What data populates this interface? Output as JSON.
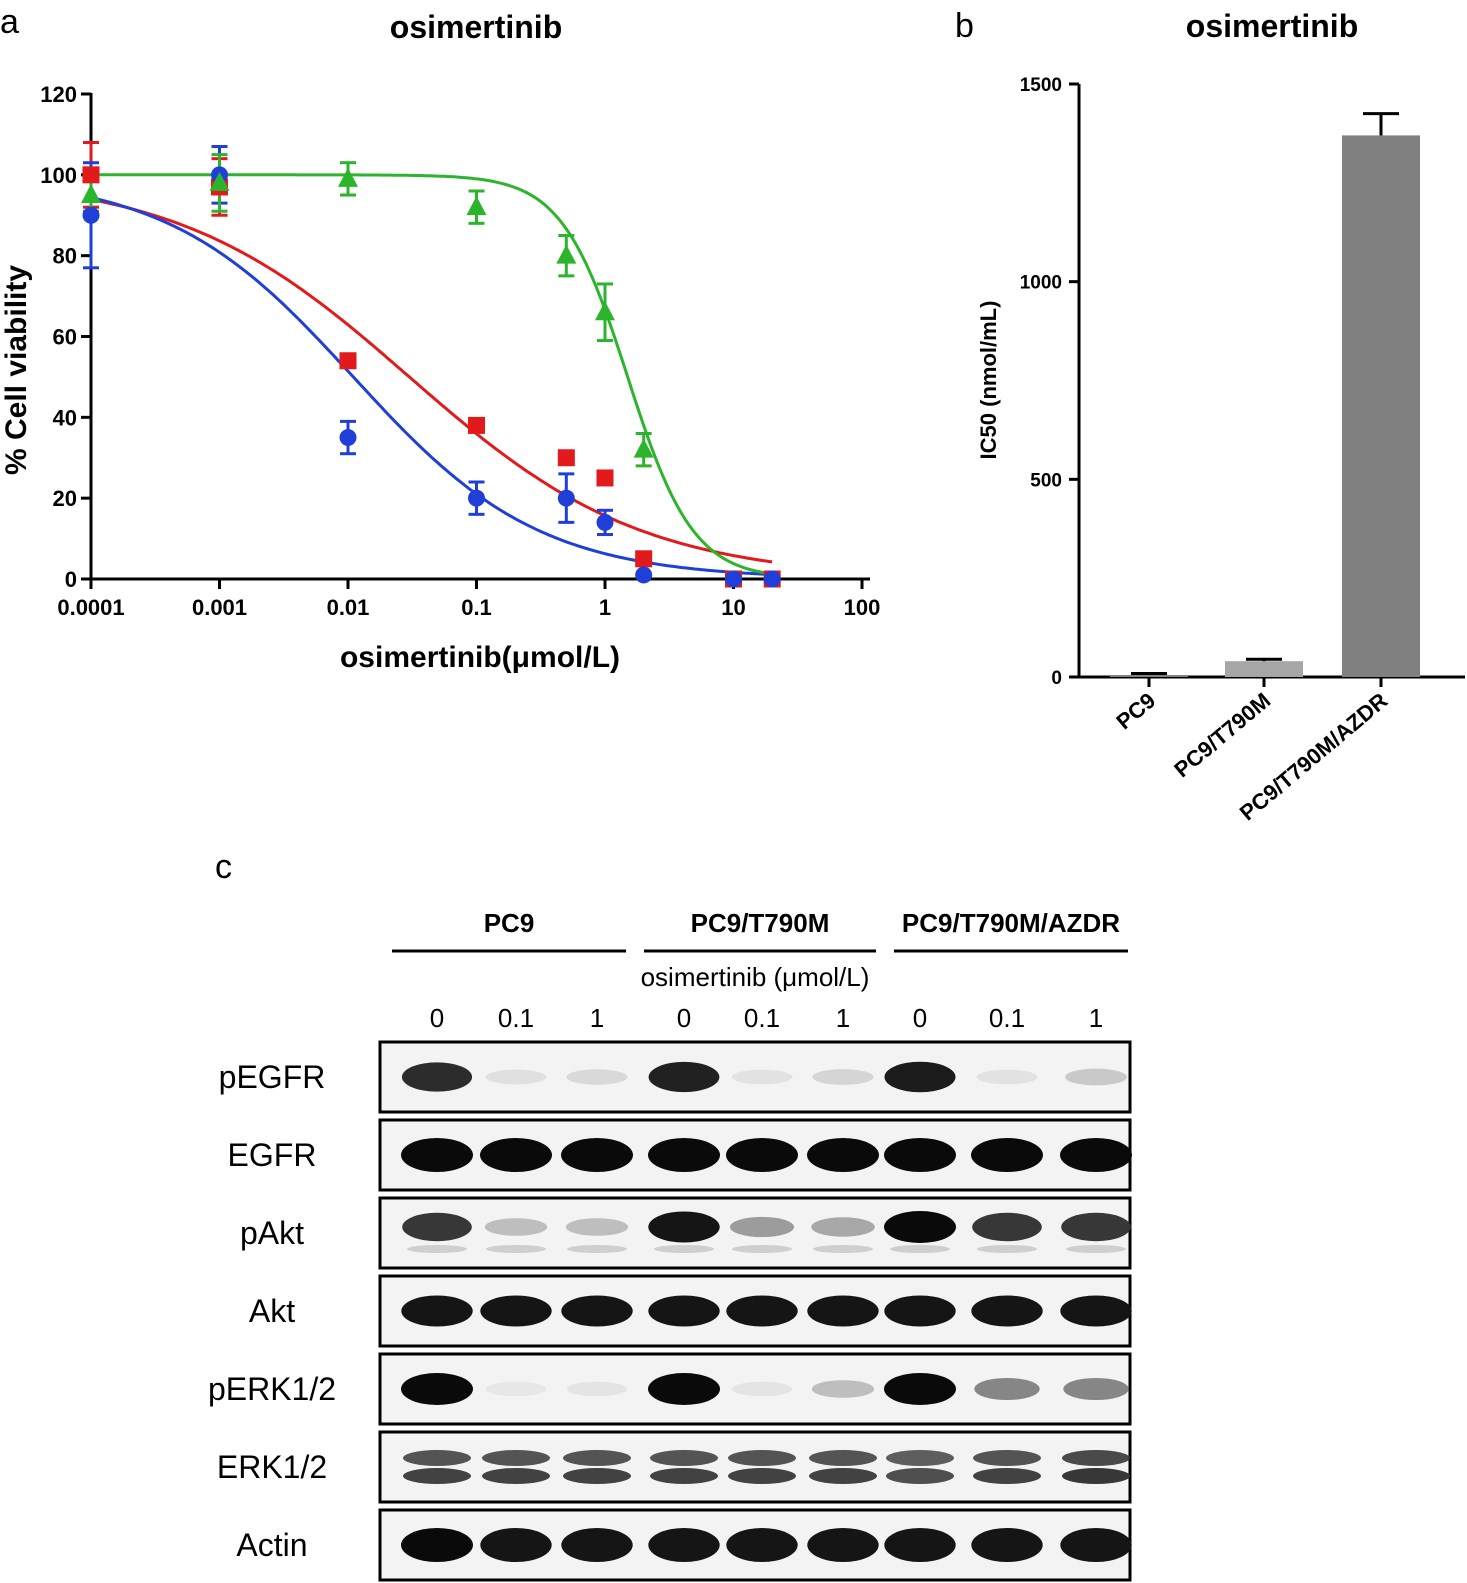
{
  "panels": {
    "a": {
      "letter": "a"
    },
    "b": {
      "letter": "b"
    },
    "c": {
      "letter": "c"
    }
  },
  "chart_data": [
    {
      "type": "scatter",
      "title": "osimertinib",
      "xlabel": "osimertinib(μmol/L)",
      "ylabel": "% Cell viability",
      "xscale": "log",
      "xlim": [
        0.0001,
        100
      ],
      "ylim": [
        0,
        120
      ],
      "xticks": [
        "0.0001",
        "0.001",
        "0.01",
        "0.1",
        "1",
        "10",
        "100"
      ],
      "yticks": [
        "0",
        "20",
        "40",
        "60",
        "80",
        "100",
        "120"
      ],
      "legend": "none",
      "series": [
        {
          "color": "#e31a1c",
          "marker": "square",
          "x": [
            0.0001,
            0.001,
            0.01,
            0.1,
            0.5,
            1,
            2,
            10,
            20
          ],
          "y": [
            100,
            97,
            54,
            38,
            30,
            25,
            5,
            0,
            0
          ],
          "err": [
            8,
            7,
            0,
            0,
            0,
            0,
            0,
            0,
            0
          ],
          "fit": {
            "top": 100,
            "bottom": 0,
            "ic50": 0.03,
            "hill": 0.48,
            "x_end": 20
          }
        },
        {
          "color": "#1f3fd8",
          "marker": "circle",
          "x": [
            0.0001,
            0.001,
            0.01,
            0.1,
            0.5,
            1,
            2,
            10,
            20
          ],
          "y": [
            90,
            100,
            35,
            20,
            20,
            14,
            1,
            0,
            0
          ],
          "err": [
            13,
            7,
            4,
            4,
            6,
            3,
            0,
            0,
            0
          ],
          "fit": {
            "top": 100,
            "bottom": 0,
            "ic50": 0.011,
            "hill": 0.6,
            "x_end": 20
          }
        },
        {
          "color": "#2cb52c",
          "marker": "triangle",
          "x": [
            0.0001,
            0.001,
            0.01,
            0.1,
            0.5,
            1,
            2
          ],
          "y": [
            95,
            98,
            99,
            92,
            80,
            66,
            32
          ],
          "err": [
            4,
            7,
            4,
            4,
            5,
            7,
            4
          ],
          "fit": {
            "top": 100,
            "bottom": 0,
            "ic50": 1.5,
            "hill": 1.7,
            "x_end": 20
          }
        }
      ]
    },
    {
      "type": "bar",
      "title": "osimertinib",
      "ylabel": "IC50 (nmol/mL)",
      "categories": [
        "PC9",
        "PC9/T790M",
        "PC9/T790M/AZDR"
      ],
      "values": [
        5,
        40,
        1370
      ],
      "err": [
        4,
        5,
        55
      ],
      "colors": [
        "#808080",
        "#a6a6a6",
        "#808080"
      ],
      "ylim": [
        0,
        1500
      ],
      "yticks": [
        "0",
        "500",
        "1000",
        "1500"
      ],
      "legend": "none"
    }
  ],
  "blot": {
    "groups": [
      "PC9",
      "PC9/T790M",
      "PC9/T790M/AZDR"
    ],
    "treatment_label": "osimertinib (μmol/L)",
    "doses": [
      "0",
      "0.1",
      "1",
      "0",
      "0.1",
      "1",
      "0",
      "0.1",
      "1"
    ],
    "rows": [
      {
        "label": "pEGFR",
        "intensity": [
          0.85,
          0.05,
          0.08,
          0.9,
          0.04,
          0.1,
          0.92,
          0.04,
          0.15
        ]
      },
      {
        "label": "EGFR",
        "intensity": [
          1.0,
          1.0,
          1.0,
          1.0,
          1.0,
          1.0,
          1.0,
          1.0,
          1.0
        ]
      },
      {
        "label": "pAkt",
        "intensity": [
          0.8,
          0.2,
          0.2,
          0.95,
          0.35,
          0.3,
          1.0,
          0.8,
          0.8
        ]
      },
      {
        "label": "Akt",
        "intensity": [
          0.95,
          0.95,
          0.95,
          0.95,
          0.95,
          0.95,
          0.95,
          0.95,
          0.95
        ]
      },
      {
        "label": "pERK1/2",
        "intensity": [
          1.0,
          0.02,
          0.03,
          1.0,
          0.03,
          0.2,
          1.0,
          0.45,
          0.45
        ]
      },
      {
        "label": "ERK1/2",
        "intensity": [
          0.75,
          0.75,
          0.75,
          0.75,
          0.75,
          0.75,
          0.7,
          0.75,
          0.8
        ]
      },
      {
        "label": "Actin",
        "intensity": [
          1.0,
          0.95,
          0.95,
          0.95,
          0.95,
          0.95,
          0.95,
          0.95,
          0.95
        ]
      }
    ]
  }
}
